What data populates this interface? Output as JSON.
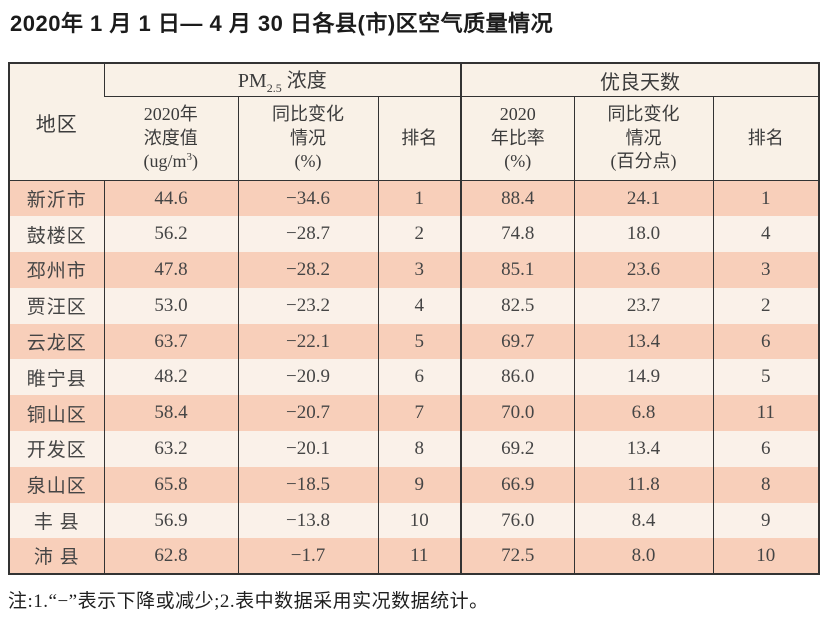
{
  "title": "2020年 1 月 1 日— 4 月 30 日各县(市)区空气质量情况",
  "table": {
    "region_header": "地区",
    "groups": {
      "pm": {
        "prefix": "PM",
        "sub": "2.5",
        "suffix": " 浓度"
      },
      "good": "优良天数"
    },
    "sub_headers": {
      "pm_value": {
        "l1": "2020年",
        "l2": "浓度值",
        "l3a": "(ug/m",
        "sup": "3",
        "l3b": ")"
      },
      "pm_change": {
        "l1": "同比变化",
        "l2": "情况",
        "l3": "(%)"
      },
      "pm_rank": "排名",
      "good_ratio": {
        "l1": "2020",
        "l2": "年比率",
        "l3": "(%)"
      },
      "good_change": {
        "l1": "同比变化",
        "l2": "情况",
        "l3": "(百分点)"
      },
      "good_rank": "排名"
    },
    "rows": [
      {
        "region": "新沂市",
        "pm_value": "44.6",
        "pm_change": "−34.6",
        "pm_rank": "1",
        "good_ratio": "88.4",
        "good_change": "24.1",
        "good_rank": "1"
      },
      {
        "region": "鼓楼区",
        "pm_value": "56.2",
        "pm_change": "−28.7",
        "pm_rank": "2",
        "good_ratio": "74.8",
        "good_change": "18.0",
        "good_rank": "4"
      },
      {
        "region": "邳州市",
        "pm_value": "47.8",
        "pm_change": "−28.2",
        "pm_rank": "3",
        "good_ratio": "85.1",
        "good_change": "23.6",
        "good_rank": "3"
      },
      {
        "region": "贾汪区",
        "pm_value": "53.0",
        "pm_change": "−23.2",
        "pm_rank": "4",
        "good_ratio": "82.5",
        "good_change": "23.7",
        "good_rank": "2"
      },
      {
        "region": "云龙区",
        "pm_value": "63.7",
        "pm_change": "−22.1",
        "pm_rank": "5",
        "good_ratio": "69.7",
        "good_change": "13.4",
        "good_rank": "6"
      },
      {
        "region": "睢宁县",
        "pm_value": "48.2",
        "pm_change": "−20.9",
        "pm_rank": "6",
        "good_ratio": "86.0",
        "good_change": "14.9",
        "good_rank": "5"
      },
      {
        "region": "铜山区",
        "pm_value": "58.4",
        "pm_change": "−20.7",
        "pm_rank": "7",
        "good_ratio": "70.0",
        "good_change": "6.8",
        "good_rank": "11"
      },
      {
        "region": "开发区",
        "pm_value": "63.2",
        "pm_change": "−20.1",
        "pm_rank": "8",
        "good_ratio": "69.2",
        "good_change": "13.4",
        "good_rank": "6"
      },
      {
        "region": "泉山区",
        "pm_value": "65.8",
        "pm_change": "−18.5",
        "pm_rank": "9",
        "good_ratio": "66.9",
        "good_change": "11.8",
        "good_rank": "8"
      },
      {
        "region": "丰 县",
        "pm_value": "56.9",
        "pm_change": "−13.8",
        "pm_rank": "10",
        "good_ratio": "76.0",
        "good_change": "8.4",
        "good_rank": "9"
      },
      {
        "region": "沛 县",
        "pm_value": "62.8",
        "pm_change": "−1.7",
        "pm_rank": "11",
        "good_ratio": "72.5",
        "good_change": "8.0",
        "good_rank": "10"
      }
    ]
  },
  "footnote": "注:1.“−”表示下降或减少;2.表中数据采用实况数据统计。",
  "colors": {
    "border": "#333333",
    "row_odd": "#f8cfba",
    "row_even": "#faf1e9",
    "header_bg": "#f9f1e7",
    "text": "#454545"
  }
}
